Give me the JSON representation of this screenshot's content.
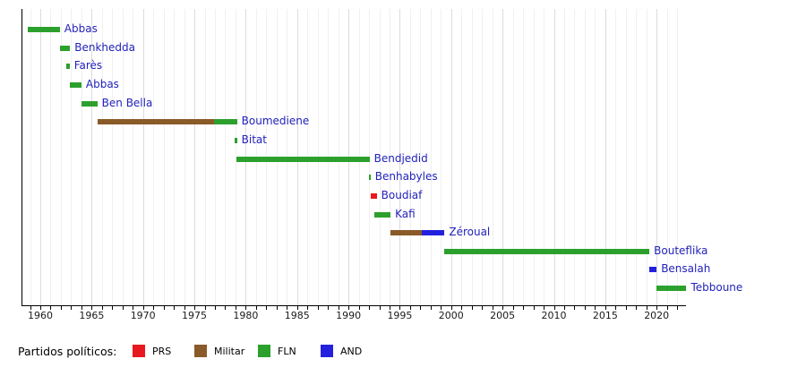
{
  "chart_data": {
    "type": "timeline",
    "description": "Timeline of Algerian heads of state colored by political party",
    "x_axis": {
      "unit": "year",
      "range": [
        1958.2,
        2022.9
      ],
      "labeled_ticks": [
        1960,
        1965,
        1970,
        1975,
        1980,
        1985,
        1990,
        1995,
        2000,
        2005,
        2010,
        2015,
        2020
      ],
      "minor_tick_interval": 1,
      "major_tick_interval": 5,
      "grid": true
    },
    "parties": {
      "PRS": "#e7191e",
      "Militar": "#8a5a28",
      "FLN": "#2ca02c",
      "AND": "#2321de"
    },
    "rows": [
      {
        "label": "Abbas",
        "segments": [
          {
            "party": "FLN",
            "start": 1958.75,
            "end": 1961.9
          }
        ]
      },
      {
        "label": "Benkhedda",
        "segments": [
          {
            "party": "FLN",
            "start": 1961.9,
            "end": 1962.9
          }
        ]
      },
      {
        "label": "Farès",
        "segments": [
          {
            "party": "FLN",
            "start": 1962.55,
            "end": 1962.85
          }
        ]
      },
      {
        "label": "Abbas",
        "segments": [
          {
            "party": "FLN",
            "start": 1962.9,
            "end": 1964.0
          }
        ]
      },
      {
        "label": "Ben Bella",
        "segments": [
          {
            "party": "FLN",
            "start": 1964.0,
            "end": 1965.55
          }
        ]
      },
      {
        "label": "Boumediene",
        "segments": [
          {
            "party": "Militar",
            "start": 1965.55,
            "end": 1976.95
          },
          {
            "party": "FLN",
            "start": 1976.95,
            "end": 1979.15
          }
        ]
      },
      {
        "label": "Bitat",
        "segments": [
          {
            "party": "FLN",
            "start": 1978.95,
            "end": 1979.15
          }
        ]
      },
      {
        "label": "Bendjedid",
        "segments": [
          {
            "party": "FLN",
            "start": 1979.1,
            "end": 1992.05
          }
        ]
      },
      {
        "label": "Benhabyles",
        "segments": [
          {
            "party": "FLN",
            "start": 1992.0,
            "end": 1992.15
          }
        ]
      },
      {
        "label": "Boudiaf",
        "segments": [
          {
            "party": "PRS",
            "start": 1992.2,
            "end": 1992.75
          }
        ]
      },
      {
        "label": "Kafi",
        "segments": [
          {
            "party": "FLN",
            "start": 1992.55,
            "end": 1994.1
          }
        ]
      },
      {
        "label": "Zéroual",
        "segments": [
          {
            "party": "Militar",
            "start": 1994.1,
            "end": 1997.15
          },
          {
            "party": "AND",
            "start": 1997.15,
            "end": 1999.35
          }
        ]
      },
      {
        "label": "Bouteflika",
        "segments": [
          {
            "party": "FLN",
            "start": 1999.35,
            "end": 2019.3
          }
        ]
      },
      {
        "label": "Bensalah",
        "segments": [
          {
            "party": "AND",
            "start": 2019.25,
            "end": 2020.0
          }
        ]
      },
      {
        "label": "Tebboune",
        "segments": [
          {
            "party": "FLN",
            "start": 2019.95,
            "end": 2022.9
          }
        ]
      }
    ],
    "legend": {
      "title": "Partidos políticos:",
      "items": [
        {
          "label": "PRS",
          "color": "#e7191e"
        },
        {
          "label": "Militar",
          "color": "#8a5a28"
        },
        {
          "label": "FLN",
          "color": "#2ca02c"
        },
        {
          "label": "AND",
          "color": "#2321de"
        }
      ]
    },
    "colors": {
      "bar_label_text": "#2222bb",
      "tick_text": "#1a1a1a",
      "grid_minor": "#f0f0f0",
      "grid_major": "#dcdcdc",
      "axis": "#000000",
      "background": "#ffffff"
    }
  }
}
